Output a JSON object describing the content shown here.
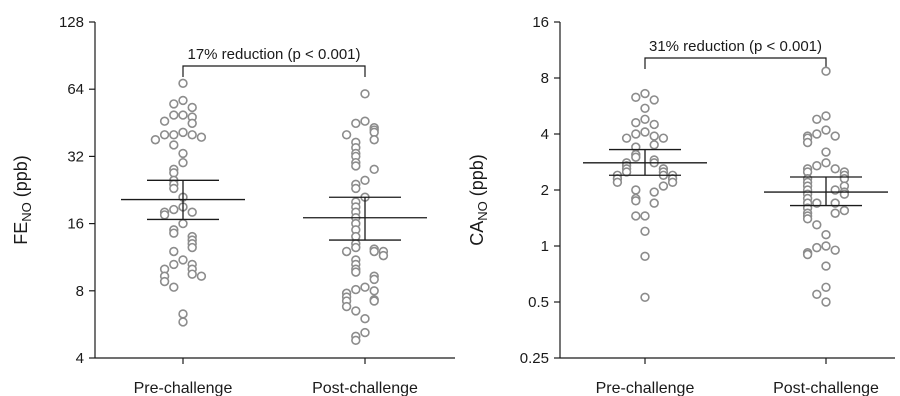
{
  "chart_data": [
    {
      "type": "scatter",
      "scale": "log2",
      "ylabel_main": "FE",
      "ylabel_sub": "NO",
      "ylabel_unit": " (ppb)",
      "categories": [
        "Pre-challenge",
        "Post-challenge"
      ],
      "yticks": [
        4,
        8,
        16,
        32,
        64,
        128
      ],
      "ytick_labels": [
        "4",
        "8",
        "16",
        "32",
        "64",
        "128"
      ],
      "ylim": [
        4,
        128
      ],
      "annotation": "17% reduction (p < 0.001)",
      "stats": [
        {
          "mean": 20.5,
          "ci_low": 16.7,
          "ci_high": 25.0
        },
        {
          "mean": 17.0,
          "ci_low": 13.5,
          "ci_high": 21.0
        }
      ],
      "series": [
        {
          "values": [
            68,
            57,
            55,
            53,
            49,
            49,
            48,
            46,
            45,
            41,
            40,
            40,
            40,
            39,
            38,
            36,
            33,
            30,
            28,
            27,
            25,
            24,
            23,
            21,
            19,
            18.5,
            18,
            18,
            17.5,
            16,
            15,
            14.5,
            14,
            13.5,
            13,
            12.5,
            12,
            11,
            10.5,
            10.5,
            10,
            10,
            9.5,
            9.3,
            9.3,
            8.8,
            8.3,
            6.3,
            5.8
          ]
        },
        {
          "values": [
            61,
            46,
            45,
            43,
            42,
            41,
            40,
            38,
            37,
            35,
            33,
            32,
            30,
            29,
            28,
            25,
            24,
            23,
            21,
            20,
            19,
            18,
            17,
            16,
            15,
            14,
            13,
            12.5,
            12.3,
            12,
            12,
            12,
            11.5,
            11,
            10.5,
            10,
            9.7,
            9.3,
            9,
            8.3,
            8.1,
            8,
            7.8,
            7.5,
            7.3,
            7.2,
            7.2,
            6.8,
            6.5,
            6,
            5.2,
            5,
            4.8
          ]
        }
      ]
    },
    {
      "type": "scatter",
      "scale": "log2",
      "ylabel_main": "CA",
      "ylabel_sub": "NO",
      "ylabel_unit": " (ppb)",
      "categories": [
        "Pre-challenge",
        "Post-challenge"
      ],
      "yticks": [
        0.25,
        0.5,
        1,
        2,
        4,
        8,
        16
      ],
      "ytick_labels": [
        "0.25",
        "0.5",
        "1",
        "2",
        "4",
        "8",
        "16"
      ],
      "ylim": [
        0.25,
        16
      ],
      "annotation": "31% reduction (p < 0.001)",
      "stats": [
        {
          "mean": 2.8,
          "ci_low": 2.4,
          "ci_high": 3.3
        },
        {
          "mean": 1.95,
          "ci_low": 1.65,
          "ci_high": 2.35
        }
      ],
      "series": [
        {
          "values": [
            6.6,
            6.3,
            6.1,
            5.5,
            4.8,
            4.6,
            4.5,
            4.1,
            4.0,
            3.9,
            3.8,
            3.8,
            3.5,
            3.4,
            3.1,
            3.0,
            2.9,
            2.8,
            2.8,
            2.7,
            2.6,
            2.6,
            2.5,
            2.5,
            2.4,
            2.4,
            2.4,
            2.3,
            2.3,
            2.2,
            2.2,
            2.1,
            2.0,
            1.95,
            1.8,
            1.75,
            1.7,
            1.45,
            1.45,
            1.2,
            0.88,
            0.53
          ]
        },
        {
          "values": [
            8.7,
            5.0,
            4.8,
            4.2,
            4.0,
            3.9,
            3.9,
            3.8,
            3.6,
            3.2,
            2.8,
            2.7,
            2.6,
            2.6,
            2.5,
            2.5,
            2.4,
            2.3,
            2.3,
            2.2,
            2.1,
            2.1,
            2.0,
            2.0,
            1.95,
            1.9,
            1.9,
            1.8,
            1.7,
            1.7,
            1.7,
            1.6,
            1.55,
            1.5,
            1.5,
            1.45,
            1.4,
            1.3,
            1.15,
            1.0,
            0.98,
            0.95,
            0.92,
            0.9,
            0.78,
            0.6,
            0.55,
            0.5
          ]
        }
      ]
    }
  ]
}
